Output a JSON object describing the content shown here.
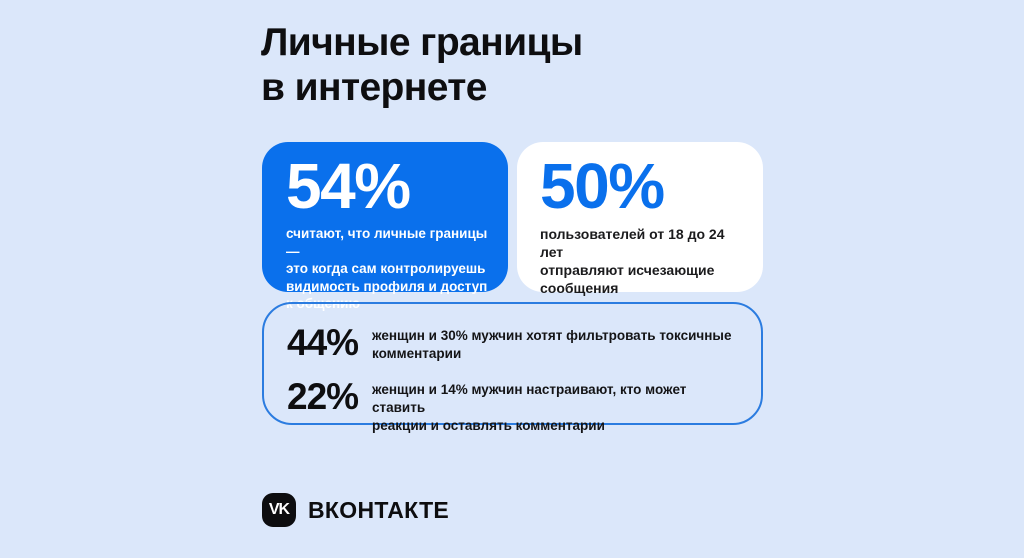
{
  "colors": {
    "background": "#dbe7fa",
    "accent_blue": "#0a70ec",
    "outline_blue": "#2b7ce0",
    "card_white": "#ffffff",
    "text_dark": "#0e0e10",
    "logo_black": "#0d0d0f"
  },
  "title": {
    "text": "Личные границы\nв интернете"
  },
  "cards": {
    "primary": {
      "value": "54%",
      "description": "считают, что личные границы —\nэто когда сам контролируешь\nвидимость профиля и доступ\nк общению"
    },
    "secondary": {
      "value": "50%",
      "description": "пользователей от 18 до 24 лет\nотправляют исчезающие\nсообщения"
    }
  },
  "outline_box": {
    "rows": [
      {
        "value": "44%",
        "description": "женщин и 30% мужчин хотят фильтровать токсичные\nкомментарии"
      },
      {
        "value": "22%",
        "description": "женщин и 14% мужчин настраивают, кто может ставить\nреакции и оставлять комментарии"
      }
    ]
  },
  "footer": {
    "logo_glyph": "VK",
    "brand": "ВКОНТАКТЕ"
  },
  "chart_data": {
    "type": "table",
    "title": "Личные границы в интернете",
    "stats": [
      {
        "value": 54,
        "unit": "%",
        "label": "считают, что личные границы — это когда сам контролируешь видимость профиля и доступ к общению"
      },
      {
        "value": 50,
        "unit": "%",
        "label": "пользователей от 18 до 24 лет отправляют исчезающие сообщения"
      },
      {
        "value": 44,
        "unit": "%",
        "label": "женщин и 30% мужчин хотят фильтровать токсичные комментарии",
        "value_men": 30
      },
      {
        "value": 22,
        "unit": "%",
        "label": "женщин и 14% мужчин настраивают, кто может ставить реакции и оставлять комментарии",
        "value_men": 14
      }
    ]
  }
}
